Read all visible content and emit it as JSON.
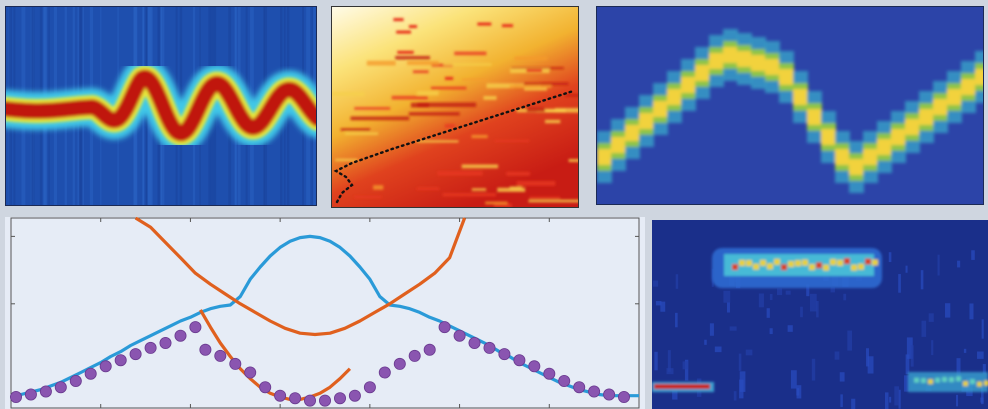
{
  "chart_data": [
    {
      "type": "heatmap",
      "colormap": "jet",
      "description_colors": {
        "background": "#1e4fae",
        "peak": "#b01a0a"
      }
    },
    {
      "type": "heatmap",
      "colormap": "hot",
      "overlay": {
        "type": "line",
        "style": "dotted",
        "color": "#111111"
      },
      "description_colors": {
        "background": "#fff6c8",
        "peak": "#c81c14"
      }
    },
    {
      "type": "heatmap",
      "colormap": "parula",
      "description_colors": {
        "background": "#2c44a8",
        "peak": "#f2d23c"
      }
    },
    {
      "type": "line",
      "grid": false,
      "series": [
        {
          "color": "#2a9ad8",
          "style": "line",
          "x": [
            0,
            0.1,
            0.2,
            0.3,
            0.4,
            0.5,
            0.6,
            0.7,
            0.8,
            0.9,
            1.0,
            1.1,
            1.2,
            1.3,
            1.4,
            1.5,
            1.6,
            1.7,
            1.8,
            1.9,
            2.0,
            2.1,
            2.2,
            2.3,
            2.4,
            2.5,
            2.6,
            2.7,
            2.8,
            2.9,
            3.0,
            3.1,
            3.2,
            3.3,
            3.4,
            3.5,
            3.6,
            3.7,
            3.8,
            3.9,
            4.0,
            4.1,
            4.2,
            4.3,
            4.4,
            4.5,
            4.6,
            4.7,
            4.8,
            4.9,
            5.0,
            5.1,
            5.2,
            5.3,
            5.4,
            5.5,
            5.6,
            5.7,
            5.8,
            5.9,
            6.0,
            6.1,
            6.2,
            6.3
          ],
          "y": [
            -1.0,
            -0.98,
            -0.94,
            -0.9,
            -0.84,
            -0.78,
            -0.7,
            -0.62,
            -0.54,
            -0.46,
            -0.36,
            -0.28,
            -0.18,
            -0.1,
            -0.02,
            0.06,
            0.14,
            0.22,
            0.28,
            0.36,
            0.42,
            0.46,
            0.48,
            0.62,
            0.9,
            1.1,
            1.28,
            1.42,
            1.52,
            1.58,
            1.6,
            1.58,
            1.52,
            1.42,
            1.28,
            1.1,
            0.9,
            0.62,
            0.48,
            0.46,
            0.42,
            0.36,
            0.28,
            0.22,
            0.14,
            0.06,
            -0.02,
            -0.1,
            -0.18,
            -0.28,
            -0.36,
            -0.46,
            -0.54,
            -0.62,
            -0.7,
            -0.78,
            -0.84,
            -0.9,
            -0.94,
            -0.98,
            -1.0,
            -1.0,
            -1.0,
            -1.0
          ]
        },
        {
          "color": "#e0601e",
          "style": "line",
          "x": [
            1.25,
            1.4,
            1.55,
            1.7,
            1.85,
            2.0,
            2.15,
            2.3,
            2.45,
            2.6,
            2.75,
            2.9,
            3.05,
            3.2,
            3.35,
            3.5,
            3.65,
            3.8,
            3.95,
            4.1,
            4.25,
            4.4,
            4.55
          ],
          "y": [
            1.9,
            1.75,
            1.5,
            1.25,
            1.0,
            0.82,
            0.66,
            0.5,
            0.36,
            0.22,
            0.1,
            0.02,
            0.0,
            0.02,
            0.1,
            0.22,
            0.36,
            0.5,
            0.66,
            0.82,
            1.0,
            1.25,
            1.9
          ]
        },
        {
          "color": "#e0601e",
          "style": "line",
          "x": [
            1.9,
            2.0,
            2.1,
            2.2,
            2.3,
            2.4,
            2.5,
            2.6,
            2.7,
            2.8,
            2.9,
            3.0,
            3.1,
            3.2,
            3.3,
            3.4
          ],
          "y": [
            0.4,
            0.12,
            -0.14,
            -0.36,
            -0.56,
            -0.72,
            -0.86,
            -0.96,
            -1.02,
            -1.06,
            -1.06,
            -1.02,
            -0.96,
            -0.86,
            -0.72,
            -0.56
          ]
        },
        {
          "color": "#8a55b0",
          "style": "markers",
          "x": [
            0.05,
            0.2,
            0.35,
            0.5,
            0.65,
            0.8,
            0.95,
            1.1,
            1.25,
            1.4,
            1.55,
            1.7,
            1.85,
            1.95,
            2.1,
            2.25,
            2.4,
            2.55,
            2.7,
            2.85,
            3.0,
            3.15,
            3.3,
            3.45,
            3.6,
            3.75,
            3.9,
            4.05,
            4.2,
            4.35,
            4.5,
            4.65,
            4.8,
            4.95,
            5.1,
            5.25,
            5.4,
            5.55,
            5.7,
            5.85,
            6.0,
            6.15
          ],
          "y": [
            -1.02,
            -0.98,
            -0.93,
            -0.86,
            -0.76,
            -0.64,
            -0.52,
            -0.42,
            -0.32,
            -0.22,
            -0.14,
            -0.02,
            0.12,
            -0.25,
            -0.35,
            -0.48,
            -0.62,
            -0.86,
            -1.0,
            -1.04,
            -1.08,
            -1.08,
            -1.04,
            -1.0,
            -0.86,
            -0.62,
            -0.48,
            -0.35,
            -0.25,
            0.12,
            -0.02,
            -0.14,
            -0.22,
            -0.32,
            -0.42,
            -0.52,
            -0.64,
            -0.76,
            -0.86,
            -0.93,
            -0.98,
            -1.02
          ]
        }
      ],
      "xlim": [
        0,
        6.3
      ],
      "ylim": [
        -1.2,
        1.9
      ]
    },
    {
      "type": "heatmap",
      "colormap": "jet",
      "description_colors": {
        "background": "#1a2f8a",
        "peak": "#c81c0c"
      }
    }
  ]
}
